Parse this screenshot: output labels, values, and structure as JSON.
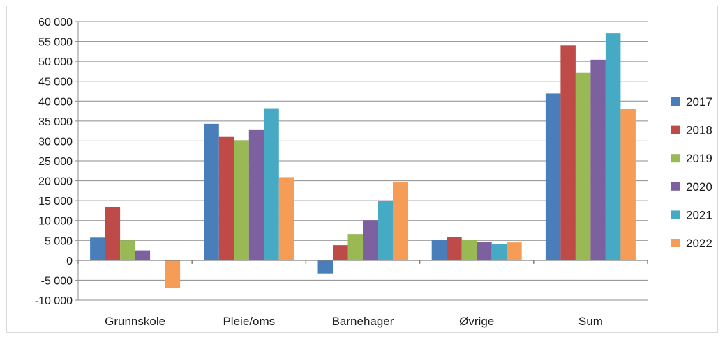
{
  "chart_data": {
    "type": "bar",
    "categories": [
      "Grunnskole",
      "Pleie/oms",
      "Barnehager",
      "Øvrige",
      "Sum"
    ],
    "series": [
      {
        "name": "2017",
        "color": "#4a7ebb",
        "values": [
          5700,
          34300,
          -3300,
          5200,
          41900
        ]
      },
      {
        "name": "2018",
        "color": "#be4b48",
        "values": [
          13300,
          31000,
          3800,
          5800,
          54000
        ]
      },
      {
        "name": "2019",
        "color": "#98b954",
        "values": [
          5000,
          30200,
          6600,
          5200,
          47100
        ]
      },
      {
        "name": "2020",
        "color": "#7d60a0",
        "values": [
          2500,
          32900,
          10100,
          4700,
          50400
        ]
      },
      {
        "name": "2021",
        "color": "#46aac5",
        "values": [
          0,
          38200,
          14900,
          4100,
          57000
        ]
      },
      {
        "name": "2022",
        "color": "#f59d56",
        "values": [
          -7000,
          20900,
          19600,
          4500,
          38000
        ]
      }
    ],
    "ylim": [
      -10000,
      60000
    ],
    "yticks": [
      "60 000",
      "55 000",
      "50 000",
      "45 000",
      "40 000",
      "35 000",
      "30 000",
      "25 000",
      "20 000",
      "15 000",
      "10 000",
      "5 000",
      "0",
      "-5 000",
      "-10 000"
    ],
    "ytick_values": [
      60000,
      55000,
      50000,
      45000,
      40000,
      35000,
      30000,
      25000,
      20000,
      15000,
      10000,
      5000,
      0,
      -5000,
      -10000
    ],
    "grid": true,
    "legend_position": "right",
    "title": "",
    "xlabel": "",
    "ylabel": ""
  }
}
